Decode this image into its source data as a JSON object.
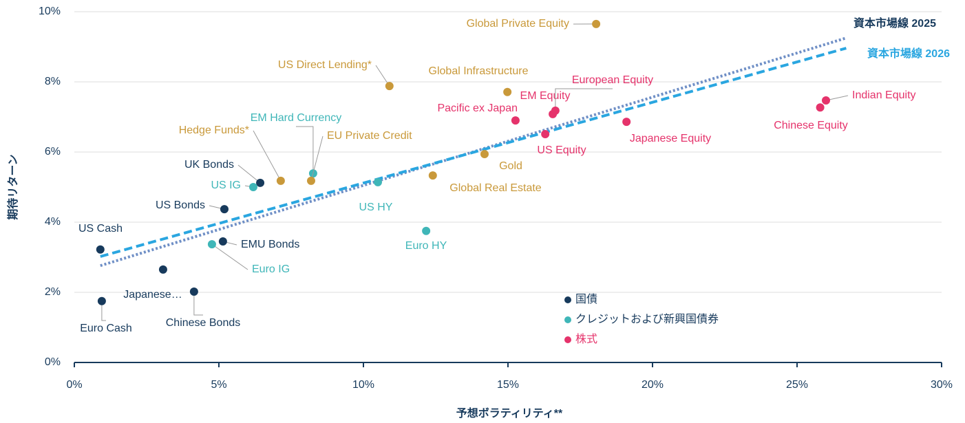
{
  "chart_data": {
    "type": "scatter",
    "xlabel": "予想ボラティリティ**",
    "ylabel": "期待リターン",
    "xlim": [
      0,
      30
    ],
    "ylim": [
      0,
      10
    ],
    "xticks": [
      {
        "value": 0,
        "label": "0%"
      },
      {
        "value": 5,
        "label": "5%"
      },
      {
        "value": 10,
        "label": "10%"
      },
      {
        "value": 15,
        "label": "15%"
      },
      {
        "value": 20,
        "label": "20%"
      },
      {
        "value": 25,
        "label": "25%"
      },
      {
        "value": 30,
        "label": "30%"
      }
    ],
    "yticks": [
      {
        "value": 0,
        "label": "0%"
      },
      {
        "value": 2,
        "label": "2%"
      },
      {
        "value": 4,
        "label": "4%"
      },
      {
        "value": 6,
        "label": "6%"
      },
      {
        "value": 8,
        "label": "8%"
      },
      {
        "value": 10,
        "label": "10%"
      }
    ],
    "grid": true,
    "series": [
      {
        "name": "国債",
        "color": "#173a5c",
        "labels": [
          "US Cash",
          "Euro Cash",
          "Japanese…",
          "Chinese Bonds",
          "EMU Bonds",
          "US Bonds",
          "UK Bonds"
        ],
        "x": [
          0.9,
          0.95,
          3.07,
          4.14,
          5.14,
          5.19,
          6.43
        ],
        "values": [
          3.22,
          1.75,
          2.65,
          2.02,
          3.45,
          4.37,
          5.12
        ]
      },
      {
        "name": "クレジットおよび新興国債券",
        "color": "#3fb6b8",
        "labels": [
          "Euro IG",
          "US IG",
          "EM Hard Currency",
          "US HY",
          "Euro HY"
        ],
        "x": [
          4.76,
          6.19,
          8.26,
          10.5,
          12.17
        ],
        "values": [
          3.37,
          5.0,
          5.39,
          5.14,
          3.75
        ]
      },
      {
        "color": "#c9993a",
        "labels": [
          "Hedge Funds*",
          "EU Private Credit",
          "US Direct Lending*",
          "Global Real Estate",
          "Gold",
          "Global Infrastructure",
          "Global Private Equity"
        ],
        "x": [
          7.14,
          8.19,
          10.9,
          12.4,
          14.19,
          14.98,
          18.05
        ],
        "values": [
          5.18,
          5.18,
          7.88,
          5.33,
          5.94,
          7.71,
          9.65
        ]
      },
      {
        "name": "株式",
        "color": "#e5336b",
        "labels": [
          "Pacific ex Japan",
          "US Equity",
          "EM Equity",
          "European Equity",
          "Japanese Equity",
          "Chinese Equity",
          "Indian Equity"
        ],
        "x": [
          15.26,
          16.29,
          16.55,
          16.64,
          19.1,
          25.8,
          26.0
        ],
        "values": [
          6.9,
          6.51,
          7.08,
          7.18,
          6.86,
          7.27,
          7.47
        ]
      }
    ],
    "lines": [
      {
        "name": "資本市場線 2025",
        "color": "#6f8fc6",
        "style": "dotted",
        "x": [
          0.9,
          26.7
        ],
        "values": [
          2.76,
          9.25
        ]
      },
      {
        "name": "資本市場線 2026",
        "color": "#2aa6e0",
        "style": "dashed",
        "x": [
          0.9,
          26.7
        ],
        "values": [
          3.02,
          8.96
        ]
      }
    ]
  }
}
